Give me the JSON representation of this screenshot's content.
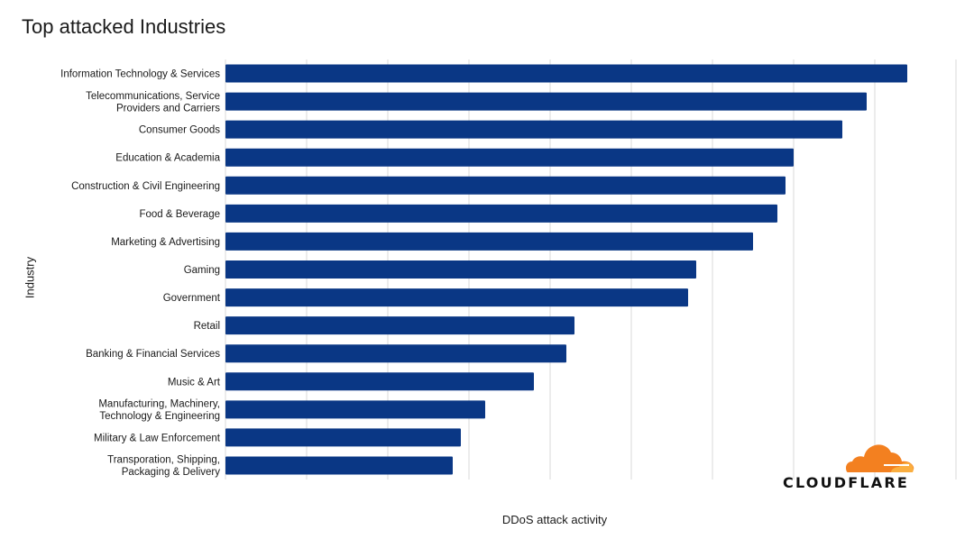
{
  "chart_data": {
    "type": "bar",
    "orientation": "horizontal",
    "title": "Top attacked Industries",
    "xlabel": "DDoS attack activity",
    "ylabel": "Industry",
    "categories": [
      "Information Technology & Services",
      "Telecommunications, Service\nProviders and Carriers",
      "Consumer Goods",
      "Education & Academia",
      "Construction & Civil Engineering",
      "Food & Beverage",
      "Marketing & Advertising",
      "Gaming",
      "Government",
      "Retail",
      "Banking & Financial Services",
      "Music & Art",
      "Manufacturing, Machinery,\nTechnology & Engineering",
      "Military & Law Enforcement",
      "Transporation, Shipping,\nPackaging & Delivery"
    ],
    "values": [
      8.4,
      7.9,
      7.6,
      7.0,
      6.9,
      6.8,
      6.5,
      5.8,
      5.7,
      4.3,
      4.2,
      3.8,
      3.2,
      2.9,
      2.8
    ],
    "xlim": [
      0,
      9
    ],
    "grid": true,
    "bar_color": "#0a3785",
    "axis_tick_labels_shown": false
  },
  "logo": {
    "text": "CLOUDFLARE",
    "colors": {
      "orange": "#f38020",
      "light_orange": "#faae40"
    }
  }
}
